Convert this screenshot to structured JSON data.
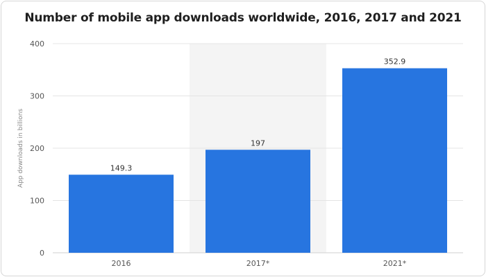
{
  "chart_data": {
    "type": "bar",
    "title": "Number of mobile app downloads worldwide, 2016, 2017 and 2021",
    "ylabel": "App downloads in billions",
    "categories": [
      "2016",
      "2017*",
      "2021*"
    ],
    "values": [
      149.3,
      197,
      352.9
    ],
    "value_labels": [
      "149.3",
      "197",
      "352.9"
    ],
    "ylim": [
      0,
      400
    ],
    "yticks": [
      "0",
      "100",
      "200",
      "300",
      "400"
    ],
    "grid": true,
    "highlighted_category": "2017*",
    "bar_color": "#2775e0",
    "highlight_band_color": "#f4f4f4",
    "grid_color": "#e4e4e4"
  }
}
